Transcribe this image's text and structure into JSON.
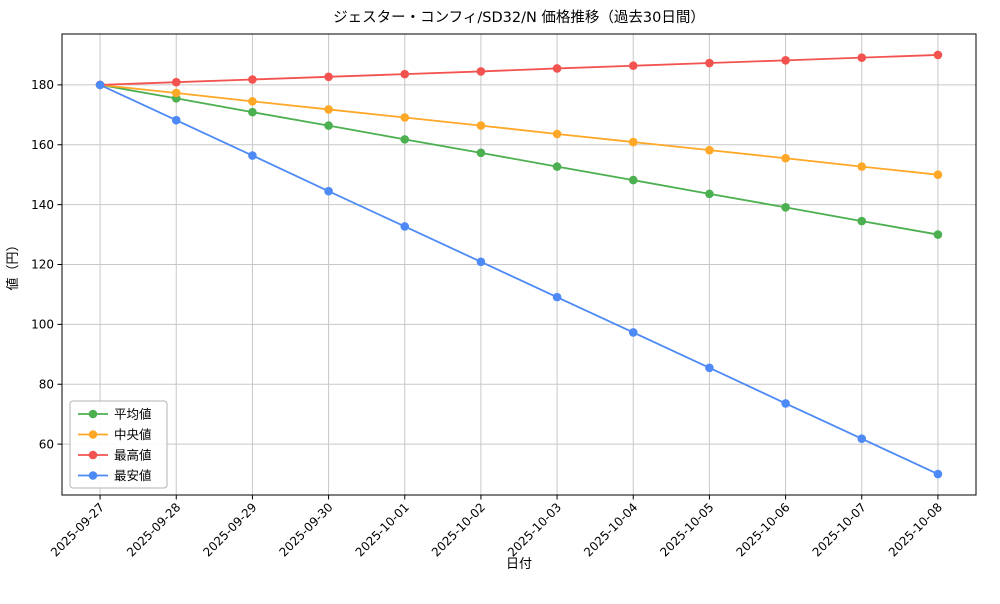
{
  "chart_data": {
    "type": "line",
    "title": "ジェスター・コンフィ/SD32/N 価格推移（過去30日間）",
    "xlabel": "日付",
    "ylabel": "値（円）",
    "x": [
      "2025-09-27",
      "2025-09-28",
      "2025-09-29",
      "2025-09-30",
      "2025-10-01",
      "2025-10-02",
      "2025-10-03",
      "2025-10-04",
      "2025-10-05",
      "2025-10-06",
      "2025-10-07",
      "2025-10-08"
    ],
    "series": [
      {
        "name": "平均値",
        "color": "#4caf50",
        "values": [
          180,
          175.5,
          170.9,
          166.4,
          161.8,
          157.3,
          152.7,
          148.2,
          143.6,
          139.1,
          134.5,
          130
        ]
      },
      {
        "name": "中央値",
        "color": "#ffa726",
        "values": [
          180,
          177.3,
          174.5,
          171.8,
          169.1,
          166.4,
          163.6,
          160.9,
          158.2,
          155.5,
          152.7,
          150
        ]
      },
      {
        "name": "最高値",
        "color": "#f3534f",
        "values": [
          180,
          180.9,
          181.8,
          182.7,
          183.6,
          184.5,
          185.5,
          186.4,
          187.3,
          188.2,
          189.1,
          190
        ]
      },
      {
        "name": "最安値",
        "color": "#4d8af5",
        "values": [
          180,
          168.2,
          156.4,
          144.5,
          132.7,
          120.9,
          109.1,
          97.3,
          85.5,
          73.6,
          61.8,
          50
        ]
      }
    ],
    "yticks": [
      60,
      80,
      100,
      120,
      140,
      160,
      180
    ],
    "ylim": [
      43,
      197
    ],
    "grid": true,
    "grid_color": "#c8c8c8",
    "spine_color": "#000000",
    "legend_position": "lower left",
    "marker": "circle"
  }
}
